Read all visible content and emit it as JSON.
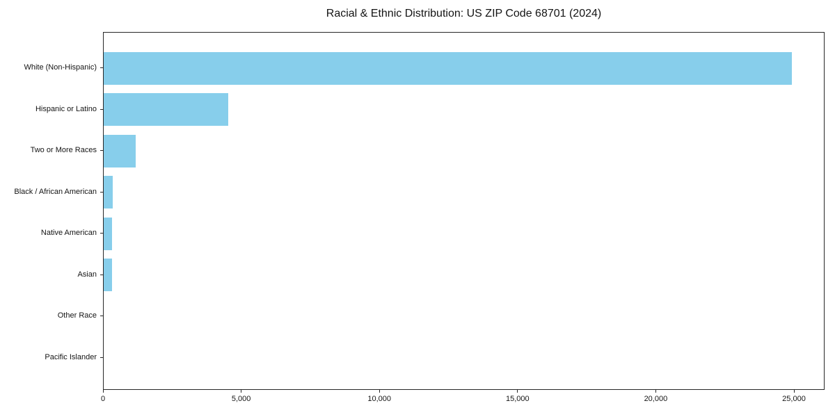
{
  "chart_data": {
    "type": "bar",
    "orientation": "horizontal",
    "title": "Racial & Ethnic Distribution: US ZIP Code 68701 (2024)",
    "categories": [
      "White (Non-Hispanic)",
      "Hispanic or Latino",
      "Two or More Races",
      "Black / African American",
      "Native American",
      "Asian",
      "Other Race",
      "Pacific Islander"
    ],
    "values": [
      24900,
      4500,
      1150,
      320,
      310,
      300,
      0,
      0
    ],
    "title_text": "Racial & Ethnic Distribution: US ZIP Code 68701 (2024)",
    "xlabel": "",
    "ylabel": "",
    "xlim": [
      0,
      26100
    ],
    "x_ticks": [
      0,
      5000,
      10000,
      15000,
      20000,
      25000
    ],
    "x_tick_labels": [
      "0",
      "5,000",
      "10,000",
      "15,000",
      "20,000",
      "25,000"
    ],
    "bar_color": "#87CEEB",
    "axis_color": "#262626",
    "background_color": "#ffffff",
    "grid": false,
    "legend": null,
    "categories_order": "largest value at top"
  }
}
